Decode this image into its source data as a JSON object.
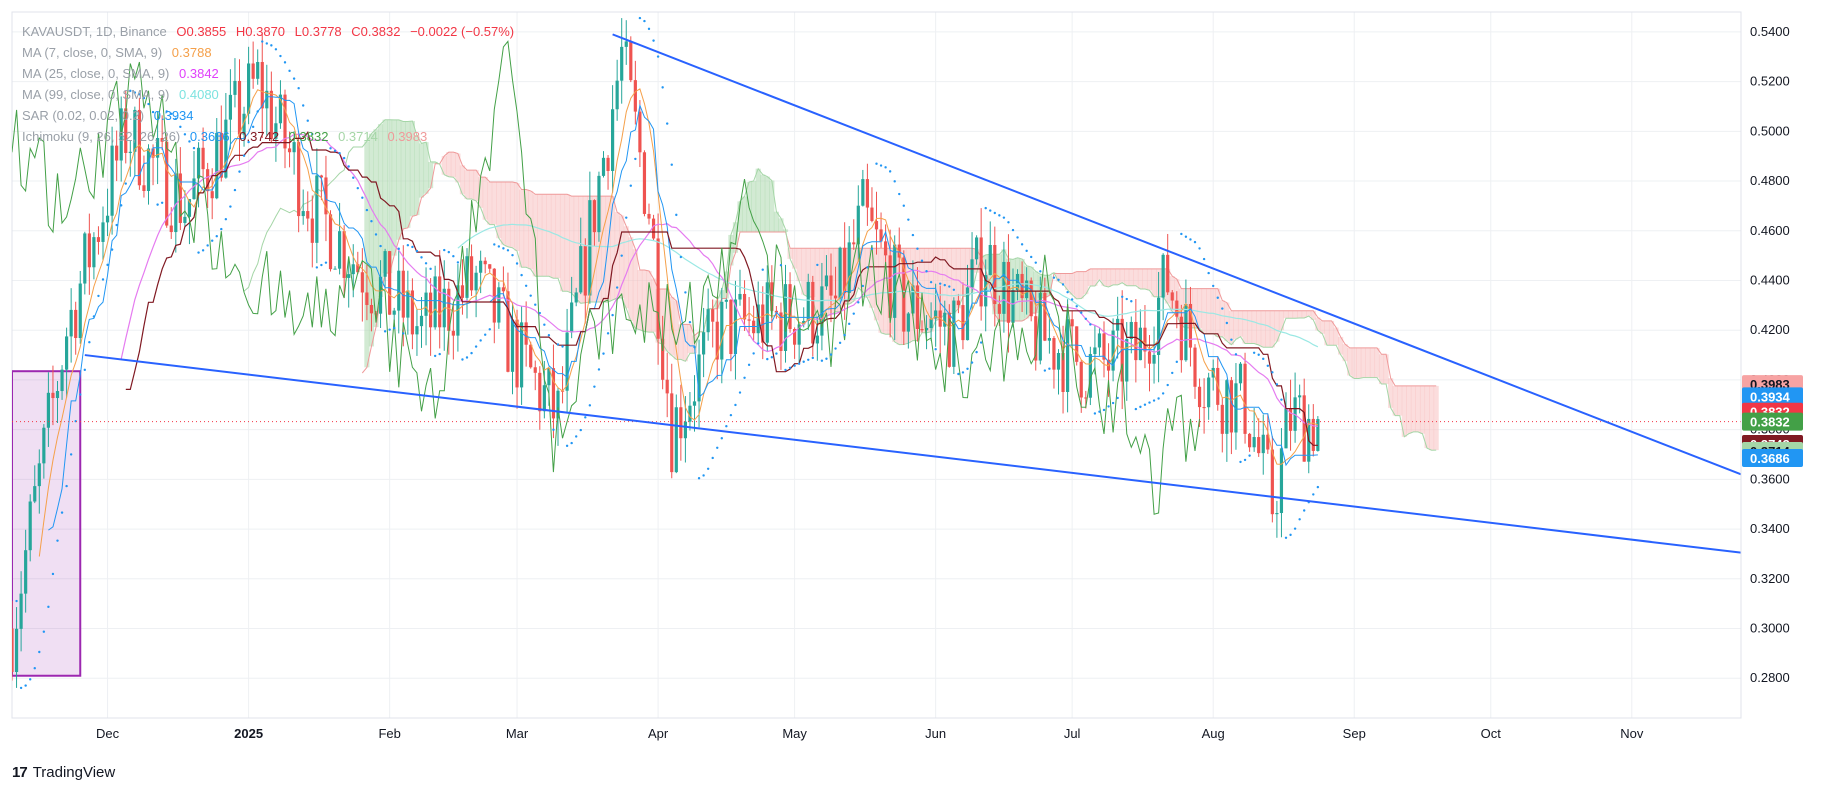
{
  "chart_data": {
    "type": "candlestick",
    "symbol_line": {
      "symbol": "KAVAUSDT, 1D, Binance",
      "open": "O0.3855",
      "high": "H0.3870",
      "low": "L0.3778",
      "close": "C0.3832",
      "change": "−0.0022 (−0.57%)"
    },
    "indicators": [
      {
        "label": "MA (7, close, 0, SMA, 9)",
        "values": [
          "0.3788"
        ],
        "colors": [
          "#f5a04a"
        ]
      },
      {
        "label": "MA (25, close, 0, SMA, 9)",
        "values": [
          "0.3842"
        ],
        "colors": [
          "#e040fb"
        ]
      },
      {
        "label": "MA (99, close, 0, SMA, 9)",
        "values": [
          "0.4080"
        ],
        "colors": [
          "#7de3e0"
        ]
      },
      {
        "label": "SAR (0.02, 0.02, 0.2)",
        "values": [
          "0.3934"
        ],
        "colors": [
          "#2196f3"
        ]
      },
      {
        "label": "Ichimoku (9, 26, 52, 26, 26)",
        "values": [
          "0.3686",
          "0.3742",
          "0.3832",
          "0.3714",
          "0.3983"
        ],
        "colors": [
          "#2196f3",
          "#801922",
          "#43a047",
          "#a5d6a7",
          "#ef9a9a"
        ]
      }
    ],
    "y_axis": {
      "ticks": [
        "0.5400",
        "0.5200",
        "0.5000",
        "0.4800",
        "0.4600",
        "0.4400",
        "0.4200",
        "0.4000",
        "0.3800",
        "0.3600",
        "0.3400",
        "0.3200",
        "0.3000",
        "0.2800"
      ],
      "range": [
        0.264,
        0.548
      ]
    },
    "x_axis": {
      "ticks": [
        {
          "label": "Dec",
          "date": "2024-12-01",
          "bold": false
        },
        {
          "label": "2025",
          "date": "2025-01-01",
          "bold": true
        },
        {
          "label": "Feb",
          "date": "2025-02-01",
          "bold": false
        },
        {
          "label": "Mar",
          "date": "2025-03-01",
          "bold": false
        },
        {
          "label": "Apr",
          "date": "2025-04-01",
          "bold": false
        },
        {
          "label": "May",
          "date": "2025-05-01",
          "bold": false
        },
        {
          "label": "Jun",
          "date": "2025-06-01",
          "bold": false
        },
        {
          "label": "Jul",
          "date": "2025-07-01",
          "bold": false
        },
        {
          "label": "Aug",
          "date": "2025-08-01",
          "bold": false
        },
        {
          "label": "Sep",
          "date": "2025-09-01",
          "bold": false
        },
        {
          "label": "Oct",
          "date": "2025-10-01",
          "bold": false
        },
        {
          "label": "Nov",
          "date": "2025-11-01",
          "bold": false
        }
      ],
      "range": [
        "2024-11-10",
        "2025-11-25"
      ]
    },
    "price_labels": [
      {
        "value": "0.3983",
        "price": 0.3983,
        "bg": "#f7a3a3",
        "fg": "#131722"
      },
      {
        "value": "0.3934",
        "price": 0.3934,
        "bg": "#2196f3",
        "fg": "#ffffff"
      },
      {
        "value": "0.3832",
        "price": 0.3872,
        "bg": "#f23645",
        "fg": "#ffffff"
      },
      {
        "value": "0.3832",
        "price": 0.3832,
        "bg": "#43a047",
        "fg": "#ffffff"
      },
      {
        "value": "0.3742",
        "price": 0.3742,
        "bg": "#801922",
        "fg": "#ffffff"
      },
      {
        "value": "0.3714",
        "price": 0.3714,
        "bg": "#a5d6a7",
        "fg": "#131722"
      },
      {
        "value": "0.3686",
        "price": 0.3686,
        "bg": "#2196f3",
        "fg": "#ffffff"
      }
    ],
    "last_price": 0.3832,
    "trendlines": [
      {
        "name": "upper-trendline",
        "from": [
          "2025-03-22",
          0.539
        ],
        "to": [
          "2025-11-25",
          0.362
        ],
        "color": "#2962ff"
      },
      {
        "name": "lower-trendline",
        "from": [
          "2024-11-26",
          0.41
        ],
        "to": [
          "2025-11-25",
          0.3305
        ],
        "color": "#2962ff"
      }
    ],
    "highlight_box": {
      "from": [
        "2024-11-10",
        0.4035
      ],
      "to": [
        "2024-11-25",
        0.281
      ],
      "color": "#9c27b0"
    },
    "grid": true,
    "colors": {
      "up": "#26a69a",
      "down": "#ef5350",
      "kumo_bull": "#a5d6a7",
      "kumo_bear": "#f8bbbb"
    }
  },
  "branding": {
    "logo": "17",
    "name": "TradingView"
  }
}
